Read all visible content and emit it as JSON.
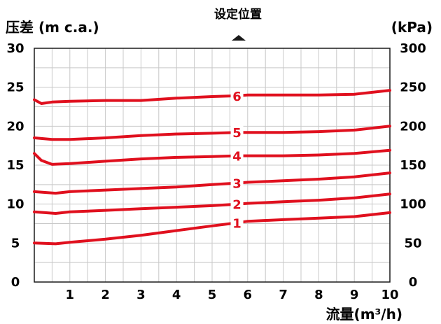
{
  "chart_data": {
    "type": "line",
    "title": "",
    "ylabel_left": "压差 (m c.a.)",
    "ylabel_right": "(kPa)",
    "xlabel": "流量(m³/h)",
    "xlim": [
      0,
      10
    ],
    "ylim_left": [
      0,
      30
    ],
    "ylim_right": [
      0,
      300
    ],
    "x_ticks": [
      "1",
      "2",
      "3",
      "4",
      "5",
      "6",
      "7",
      "8",
      "9",
      "10"
    ],
    "y_ticks_left": [
      "0",
      "5",
      "10",
      "15",
      "20",
      "25",
      "30"
    ],
    "y_ticks_right": [
      "0",
      "50",
      "100",
      "150",
      "200",
      "250",
      "300"
    ],
    "marker": {
      "label": "设定位置",
      "x": 5.75,
      "icon": "triangle-up-icon"
    },
    "grid": true,
    "line_color": "#e0101e",
    "series": [
      {
        "name": "1",
        "label_x": 5.7,
        "points": [
          [
            0,
            5.0
          ],
          [
            0.6,
            4.9
          ],
          [
            1,
            5.1
          ],
          [
            2,
            5.5
          ],
          [
            3,
            6.0
          ],
          [
            4,
            6.6
          ],
          [
            5,
            7.2
          ],
          [
            5.7,
            7.6
          ],
          [
            6,
            7.8
          ],
          [
            7,
            8.0
          ],
          [
            8,
            8.2
          ],
          [
            9,
            8.4
          ],
          [
            10,
            8.9
          ]
        ]
      },
      {
        "name": "2",
        "label_x": 5.7,
        "points": [
          [
            0,
            9.0
          ],
          [
            0.6,
            8.8
          ],
          [
            1,
            9.0
          ],
          [
            2,
            9.2
          ],
          [
            3,
            9.4
          ],
          [
            4,
            9.6
          ],
          [
            5,
            9.8
          ],
          [
            5.7,
            10.0
          ],
          [
            6,
            10.1
          ],
          [
            7,
            10.3
          ],
          [
            8,
            10.5
          ],
          [
            9,
            10.8
          ],
          [
            10,
            11.3
          ]
        ]
      },
      {
        "name": "3",
        "label_x": 5.7,
        "points": [
          [
            0,
            11.6
          ],
          [
            0.6,
            11.4
          ],
          [
            1,
            11.6
          ],
          [
            2,
            11.8
          ],
          [
            3,
            12.0
          ],
          [
            4,
            12.2
          ],
          [
            5,
            12.5
          ],
          [
            5.7,
            12.7
          ],
          [
            6,
            12.8
          ],
          [
            7,
            13.0
          ],
          [
            8,
            13.2
          ],
          [
            9,
            13.5
          ],
          [
            10,
            14.0
          ]
        ]
      },
      {
        "name": "4",
        "label_x": 5.7,
        "points": [
          [
            0,
            16.5
          ],
          [
            0.2,
            15.6
          ],
          [
            0.5,
            15.1
          ],
          [
            1,
            15.2
          ],
          [
            2,
            15.5
          ],
          [
            3,
            15.8
          ],
          [
            4,
            16.0
          ],
          [
            5,
            16.1
          ],
          [
            5.7,
            16.2
          ],
          [
            6,
            16.2
          ],
          [
            7,
            16.2
          ],
          [
            8,
            16.3
          ],
          [
            9,
            16.5
          ],
          [
            10,
            16.9
          ]
        ]
      },
      {
        "name": "5",
        "label_x": 5.7,
        "points": [
          [
            0,
            18.5
          ],
          [
            0.5,
            18.3
          ],
          [
            1,
            18.3
          ],
          [
            2,
            18.5
          ],
          [
            3,
            18.8
          ],
          [
            4,
            19.0
          ],
          [
            5,
            19.1
          ],
          [
            5.7,
            19.2
          ],
          [
            6,
            19.2
          ],
          [
            7,
            19.2
          ],
          [
            8,
            19.3
          ],
          [
            9,
            19.5
          ],
          [
            10,
            20.0
          ]
        ]
      },
      {
        "name": "6",
        "label_x": 5.7,
        "points": [
          [
            0,
            23.4
          ],
          [
            0.2,
            22.9
          ],
          [
            0.5,
            23.1
          ],
          [
            1,
            23.2
          ],
          [
            2,
            23.3
          ],
          [
            3,
            23.3
          ],
          [
            4,
            23.6
          ],
          [
            5,
            23.8
          ],
          [
            5.7,
            23.9
          ],
          [
            6,
            24.0
          ],
          [
            7,
            24.0
          ],
          [
            8,
            24.0
          ],
          [
            9,
            24.1
          ],
          [
            10,
            24.6
          ]
        ]
      }
    ]
  }
}
